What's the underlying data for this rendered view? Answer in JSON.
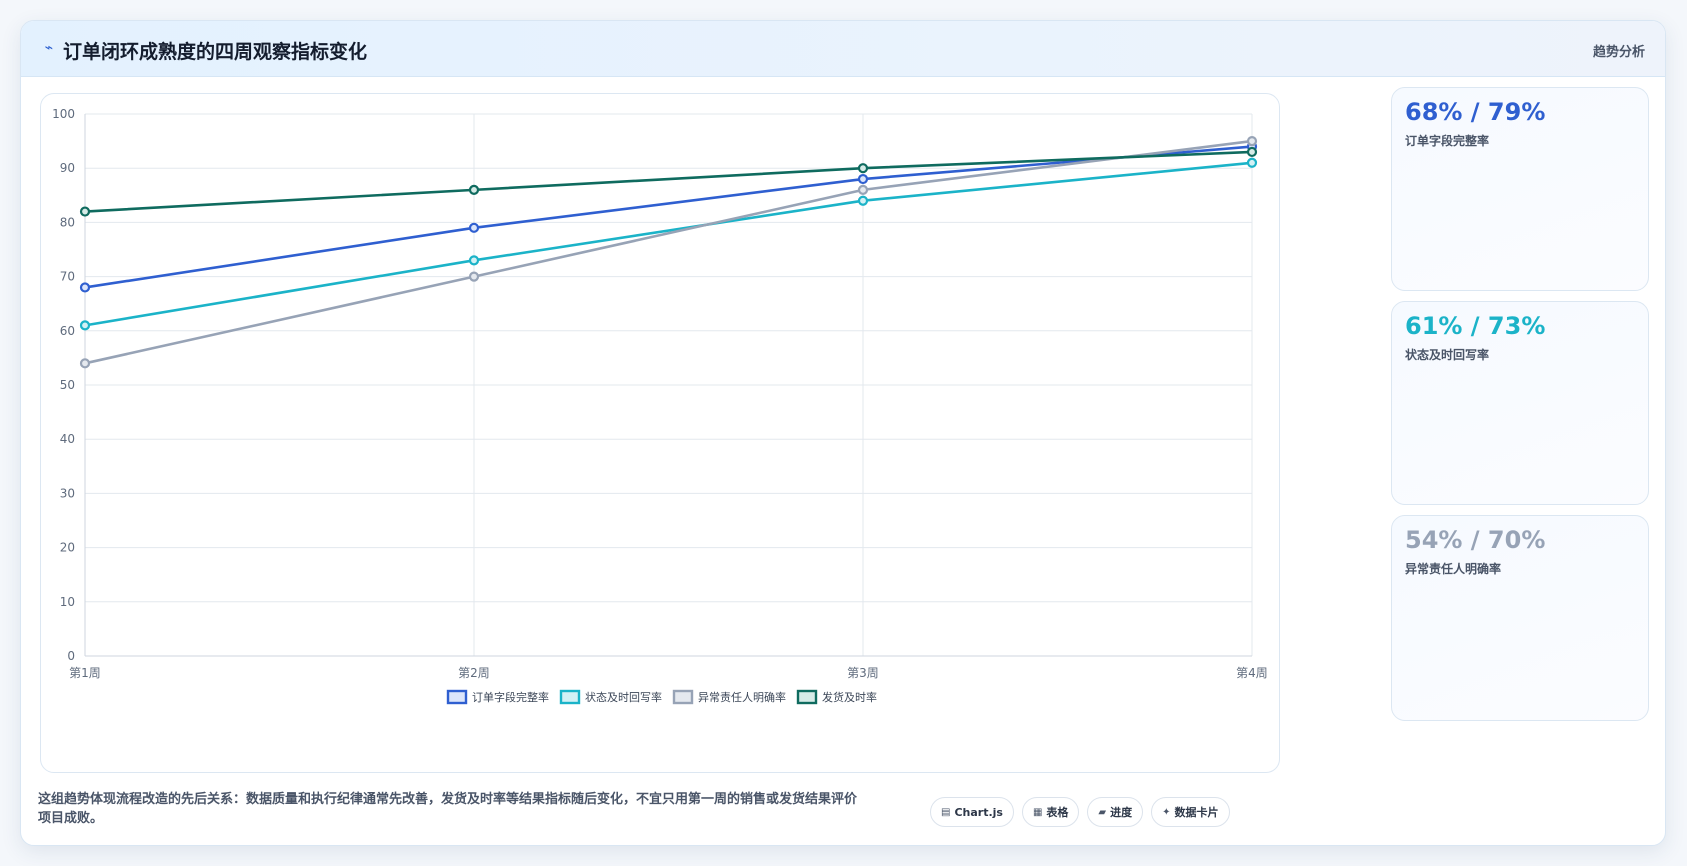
{
  "header": {
    "icon": "trend-line-icon",
    "title": "订单闭环成熟度的四周观察指标变化",
    "right_label": "趋势分析"
  },
  "chart_data": {
    "type": "line",
    "categories": [
      "第1周",
      "第2周",
      "第3周",
      "第4周"
    ],
    "ylim": [
      0,
      100
    ],
    "yticks": [
      0,
      10,
      20,
      30,
      40,
      50,
      60,
      70,
      80,
      90,
      100
    ],
    "grid": true,
    "legend_position": "bottom",
    "series": [
      {
        "name": "订单字段完整率",
        "color": "#2f5fd0",
        "fill": "#dbe5fb",
        "values": [
          68,
          79,
          88,
          94
        ]
      },
      {
        "name": "状态及时回写率",
        "color": "#1bb3c8",
        "fill": "#d3f1f5",
        "values": [
          61,
          73,
          84,
          91
        ]
      },
      {
        "name": "异常责任人明确率",
        "color": "#97a3b6",
        "fill": "#e5e9ef",
        "values": [
          54,
          70,
          86,
          95
        ]
      },
      {
        "name": "发货及时率",
        "color": "#0f6b5f",
        "fill": "#d6ebe7",
        "values": [
          82,
          86,
          90,
          93
        ]
      }
    ]
  },
  "stats": [
    {
      "value": "68% / 79%",
      "label": "订单字段完整率",
      "color": "#2f5fd0"
    },
    {
      "value": "61% / 73%",
      "label": "状态及时回写率",
      "color": "#1bb3c8"
    },
    {
      "value": "54% / 70%",
      "label": "异常责任人明确率",
      "color": "#97a3b6"
    }
  ],
  "footnote": "这组趋势体现流程改造的先后关系：数据质量和执行纪律通常先改善，发货及时率等结果指标随后变化，不宜只用第一周的销售或发货结果评价项目成败。",
  "tags": [
    {
      "icon": "chart-icon",
      "label": "Chart.js"
    },
    {
      "icon": "table-icon",
      "label": "表格"
    },
    {
      "icon": "progress-icon",
      "label": "进度"
    },
    {
      "icon": "card-icon",
      "label": "数据卡片"
    }
  ]
}
